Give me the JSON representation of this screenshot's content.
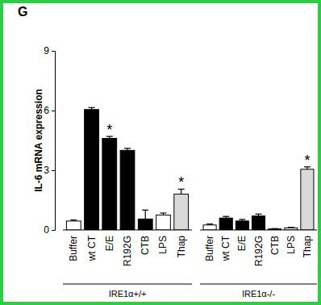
{
  "chart_data": {
    "type": "bar",
    "title": "G",
    "y_label": "IL-6 mRNA expression",
    "categories": [
      "Buffer",
      "wt CT",
      "E/E",
      "R192G",
      "CTB",
      "LPS",
      "Thap"
    ],
    "ylim": [
      0,
      9
    ],
    "yticks": [
      0,
      3,
      6,
      9
    ],
    "grid": false,
    "series": [
      {
        "name": "IRE1α+/+",
        "values": [
          0.45,
          6.05,
          4.6,
          4.0,
          0.55,
          0.75,
          1.8
        ],
        "errors": [
          0.05,
          0.1,
          0.1,
          0.1,
          0.45,
          0.1,
          0.25
        ],
        "colors": [
          "#ffffff",
          "#000000",
          "#000000",
          "#000000",
          "#000000",
          "#ffffff",
          "#d9d9d9"
        ]
      },
      {
        "name": "IRE1α-/-",
        "values": [
          0.25,
          0.6,
          0.45,
          0.7,
          0.05,
          0.1,
          3.05
        ],
        "errors": [
          0.05,
          0.08,
          0.08,
          0.1,
          0.02,
          0.03,
          0.12
        ],
        "colors": [
          "#ffffff",
          "#000000",
          "#000000",
          "#000000",
          "#000000",
          "#ffffff",
          "#d9d9d9"
        ]
      }
    ],
    "annotations": [
      {
        "text": "*",
        "series": 0,
        "category": 2
      },
      {
        "text": "*",
        "series": 0,
        "category": 6
      },
      {
        "text": "*",
        "series": 1,
        "category": 6
      }
    ]
  }
}
